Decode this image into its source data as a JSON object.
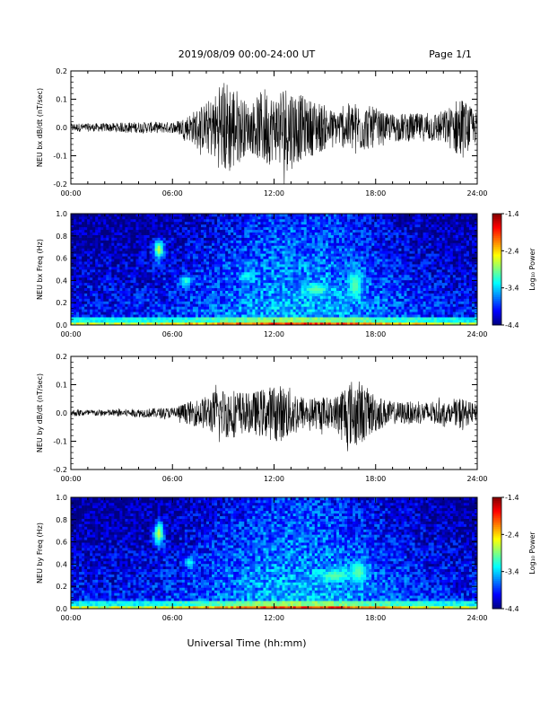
{
  "header": {
    "title": "2019/08/09  00:00-24:00 UT",
    "page": "Page 1/1"
  },
  "xlabel": "Universal Time (hh:mm)",
  "colors": {
    "trace": "#000000"
  },
  "chart_data": [
    {
      "type": "line",
      "ylabel": "NEU bx dB/dt (nT/sec)",
      "xlim": [
        0,
        24
      ],
      "ylim": [
        -0.2,
        0.2
      ],
      "x_ticks": [
        "00:00",
        "06:00",
        "12:00",
        "18:00",
        "24:00"
      ],
      "y_ticks": [
        "-0.2",
        "-0.1",
        "0.0",
        "0.1",
        "0.2"
      ],
      "envelope": {
        "x": [
          0,
          2,
          4,
          6,
          6.5,
          7,
          7.5,
          8,
          8.5,
          9,
          9.5,
          10,
          10.5,
          11,
          11.5,
          12,
          12.5,
          13,
          13.5,
          14,
          14.5,
          15,
          15.5,
          16,
          16.5,
          17,
          17.5,
          18,
          18.5,
          19,
          20,
          21,
          22,
          22.5,
          23,
          23.5,
          24
        ],
        "amplitude": [
          0.015,
          0.015,
          0.02,
          0.02,
          0.03,
          0.05,
          0.07,
          0.09,
          0.12,
          0.17,
          0.17,
          0.12,
          0.08,
          0.11,
          0.15,
          0.11,
          0.16,
          0.15,
          0.12,
          0.1,
          0.1,
          0.08,
          0.06,
          0.07,
          0.09,
          0.09,
          0.08,
          0.07,
          0.05,
          0.05,
          0.05,
          0.05,
          0.06,
          0.08,
          0.12,
          0.08,
          0.05
        ]
      }
    },
    {
      "type": "heatmap",
      "ylabel": "NEU bx Freq (Hz)",
      "colorbar_label": "Log₁₀ Power",
      "colorbar_ticks": [
        "-1.4",
        "-2.4",
        "-3.4",
        "-4.4"
      ],
      "xlim": [
        0,
        24
      ],
      "ylim": [
        0,
        1.0
      ],
      "zlim": [
        -4.4,
        -1.4
      ],
      "x_ticks": [
        "00:00",
        "06:00",
        "12:00",
        "18:00",
        "24:00"
      ],
      "y_ticks": [
        "0.0",
        "0.2",
        "0.4",
        "0.6",
        "0.8",
        "1.0"
      ],
      "features": [
        {
          "t": 5.2,
          "f": 0.68,
          "dt": 0.3,
          "df": 0.09,
          "level": -2.7
        },
        {
          "t": 6.8,
          "f": 0.4,
          "dt": 0.3,
          "df": 0.05,
          "level": -3.1
        },
        {
          "t": 10.4,
          "f": 0.44,
          "dt": 0.4,
          "df": 0.04,
          "level": -3.2
        },
        {
          "t": 14.5,
          "f": 0.32,
          "dt": 0.7,
          "df": 0.05,
          "level": -3.0
        },
        {
          "t": 16.8,
          "f": 0.36,
          "dt": 0.4,
          "df": 0.12,
          "level": -3.0
        }
      ]
    },
    {
      "type": "line",
      "ylabel": "NEU by dB/dt (nT/sec)",
      "xlim": [
        0,
        24
      ],
      "ylim": [
        -0.2,
        0.2
      ],
      "x_ticks": [
        "00:00",
        "06:00",
        "12:00",
        "18:00",
        "24:00"
      ],
      "y_ticks": [
        "-0.2",
        "-0.1",
        "0.0",
        "0.1",
        "0.2"
      ],
      "envelope": {
        "x": [
          0,
          2,
          4,
          6,
          6.5,
          7,
          7.5,
          8,
          8.5,
          9,
          9.5,
          10,
          10.5,
          11,
          11.5,
          12,
          12.5,
          13,
          13.5,
          14,
          14.5,
          15,
          15.5,
          16,
          16.5,
          17,
          17.5,
          18,
          18.5,
          19,
          20,
          21,
          22,
          22.5,
          23,
          23.5,
          24
        ],
        "amplitude": [
          0.012,
          0.012,
          0.015,
          0.02,
          0.03,
          0.04,
          0.05,
          0.06,
          0.08,
          0.09,
          0.09,
          0.08,
          0.07,
          0.08,
          0.09,
          0.1,
          0.1,
          0.09,
          0.07,
          0.05,
          0.06,
          0.06,
          0.05,
          0.1,
          0.12,
          0.12,
          0.09,
          0.07,
          0.05,
          0.04,
          0.04,
          0.04,
          0.04,
          0.03,
          0.06,
          0.04,
          0.03
        ]
      }
    },
    {
      "type": "heatmap",
      "ylabel": "NEU by Freq (Hz)",
      "colorbar_label": "Log₁₀ Power",
      "colorbar_ticks": [
        "-1.4",
        "-2.4",
        "-3.4",
        "-4.4"
      ],
      "xlim": [
        0,
        24
      ],
      "ylim": [
        0,
        1.0
      ],
      "zlim": [
        -4.4,
        -1.4
      ],
      "x_ticks": [
        "00:00",
        "06:00",
        "12:00",
        "18:00",
        "24:00"
      ],
      "y_ticks": [
        "0.0",
        "0.2",
        "0.4",
        "0.6",
        "0.8",
        "1.0"
      ],
      "features": [
        {
          "t": 5.2,
          "f": 0.68,
          "dt": 0.3,
          "df": 0.1,
          "level": -2.7
        },
        {
          "t": 7.0,
          "f": 0.42,
          "dt": 0.3,
          "df": 0.05,
          "level": -3.2
        },
        {
          "t": 15.6,
          "f": 0.3,
          "dt": 0.9,
          "df": 0.05,
          "level": -3.0
        },
        {
          "t": 17.0,
          "f": 0.33,
          "dt": 0.5,
          "df": 0.1,
          "level": -3.0
        }
      ]
    }
  ]
}
